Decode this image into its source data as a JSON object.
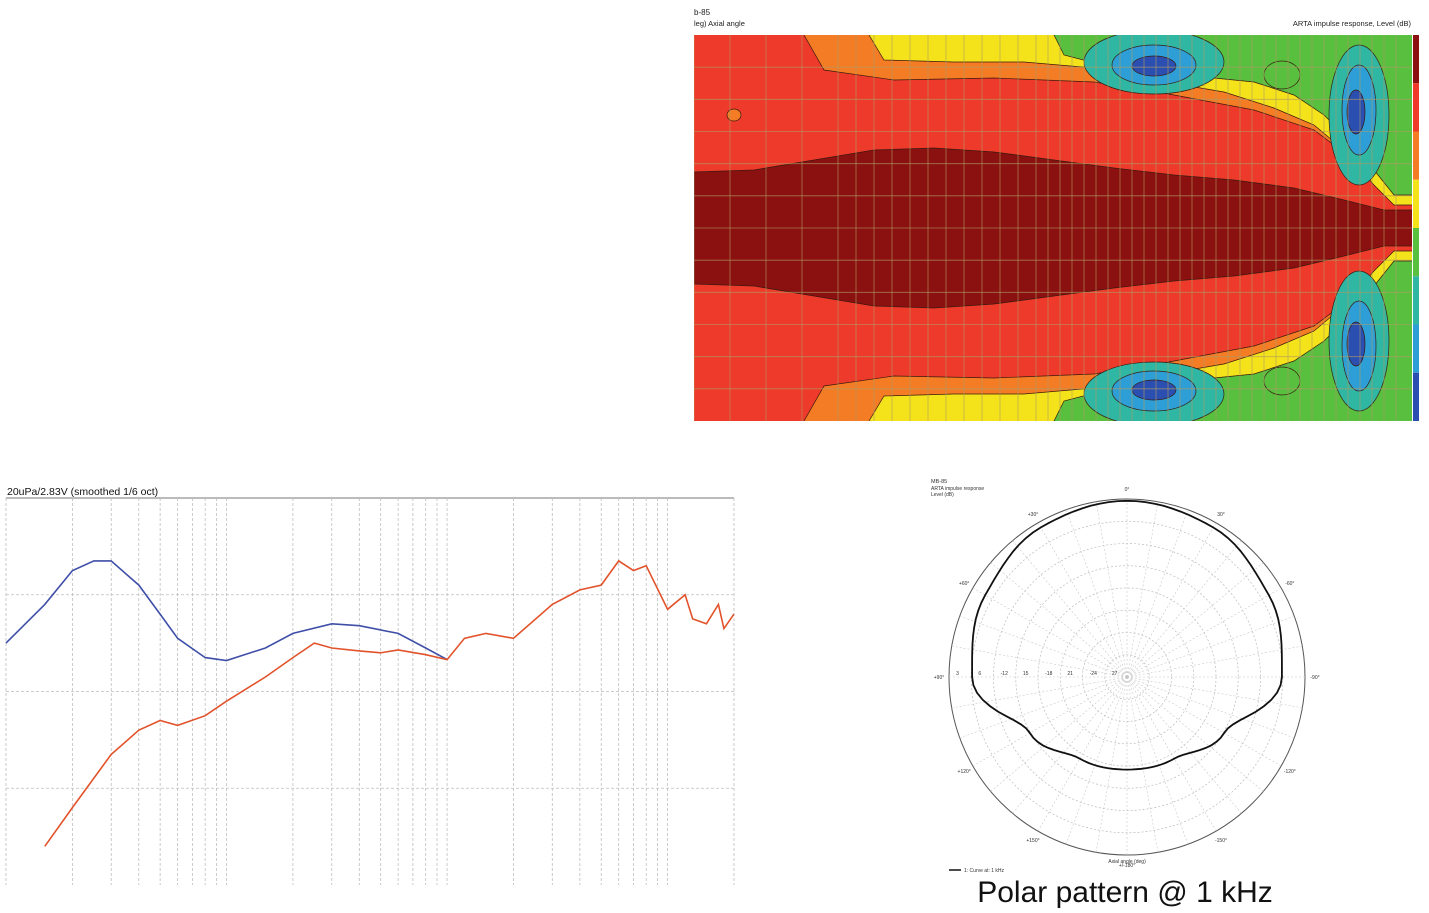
{
  "colors": {
    "darkred": "#8b1010",
    "red": "#ee3a2a",
    "orange": "#f47c24",
    "yellow": "#f4e31a",
    "green": "#58c03e",
    "teal": "#2fb7a4",
    "cyan": "#2e9fd6",
    "blue": "#2a4fb0",
    "blue_series": "#3f4fa8",
    "orange_series": "#e2532b",
    "grid_contour": "#b09a64",
    "grid": "#bdbdbd"
  },
  "chart_data": [
    {
      "type": "heatmap",
      "name": "directivity-contour",
      "model_label": "b-85",
      "axis_label": "leg)  Axial angle",
      "title": "ARTA impulse response, Level  (dB)",
      "levels_desc": [
        "darkred",
        "red",
        "orange",
        "yellow",
        "green",
        "teal",
        "cyan",
        "blue"
      ]
    },
    {
      "type": "line",
      "name": "frequency-response",
      "title": "20uPa/2.83V (smoothed 1/6 oct)",
      "x_scale": "log",
      "xlim": [
        10,
        20000
      ],
      "ylim": [
        60,
        100
      ],
      "series": [
        {
          "name": "blue",
          "x": [
            10,
            15,
            20,
            25,
            30,
            40,
            50,
            60,
            80,
            100,
            150,
            200,
            300,
            400,
            600,
            800,
            1000
          ],
          "y": [
            85,
            89,
            92.5,
            93.5,
            93.5,
            91,
            88,
            85.5,
            83.5,
            83.2,
            84.5,
            86,
            87,
            86.8,
            86,
            84.5,
            83.3
          ]
        },
        {
          "name": "orange",
          "x": [
            15,
            20,
            30,
            40,
            50,
            60,
            80,
            100,
            150,
            200,
            250,
            300,
            400,
            500,
            600,
            800,
            1000,
            1200,
            1500,
            2000,
            3000,
            4000,
            5000,
            6000,
            7000,
            8000,
            10000,
            12000,
            13000,
            15000,
            17000,
            18000,
            20000
          ],
          "y": [
            64,
            68,
            73.5,
            76,
            77,
            76.5,
            77.5,
            79,
            81.5,
            83.5,
            85,
            84.5,
            84.2,
            84,
            84.3,
            83.8,
            83.3,
            85.5,
            86,
            85.5,
            89,
            90.5,
            91,
            93.5,
            92.5,
            93,
            88.5,
            90,
            87.5,
            87,
            89,
            86.5,
            88
          ]
        }
      ]
    },
    {
      "type": "scatter",
      "name": "polar-pattern",
      "header_model": "MB-85",
      "header_line1": "ARTA impulse response",
      "header_line2": "Level  (dB)",
      "r_labels": [
        "3",
        "6",
        "-12",
        "15",
        "-18",
        "21",
        "-24",
        "27"
      ],
      "angle_labels": [
        "0°",
        "+30°",
        "30°",
        "+60°",
        "-60°",
        "+90°",
        "-90°",
        "+120°",
        "-120°",
        "+150°",
        "-150°",
        "+/-180°"
      ],
      "axis_title": "Axial angle  (deg)",
      "legend": "1: Curve at: 1 kHz",
      "angles_deg": [
        0,
        30,
        60,
        90,
        120,
        150,
        180,
        210,
        240,
        270,
        300,
        330
      ],
      "radius_fraction": [
        0.99,
        0.97,
        0.92,
        0.87,
        0.63,
        0.53,
        0.52,
        0.53,
        0.63,
        0.87,
        0.92,
        0.97
      ]
    }
  ],
  "caption": "Polar pattern @ 1 kHz"
}
